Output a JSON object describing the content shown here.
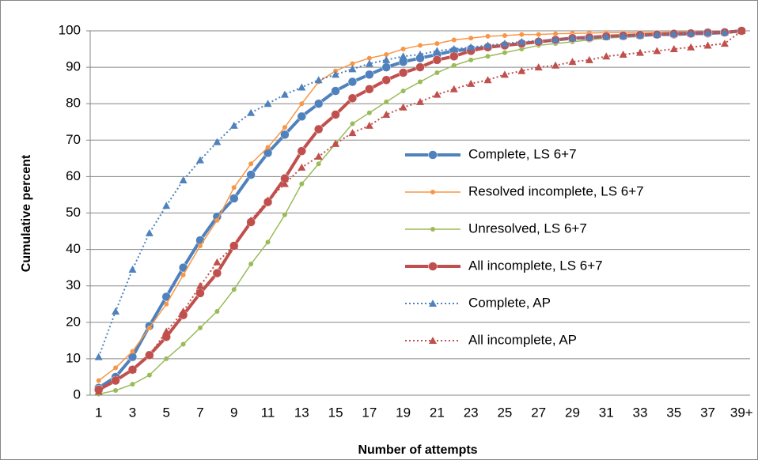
{
  "chart_data": {
    "type": "line",
    "x_label": "Number of attempts",
    "y_label": "Cumulative percent",
    "categories": [
      "1",
      null,
      "3",
      null,
      "5",
      null,
      "7",
      null,
      "9",
      null,
      "11",
      null,
      "13",
      null,
      "15",
      null,
      "17",
      null,
      "19",
      null,
      "21",
      null,
      "23",
      null,
      "25",
      null,
      "27",
      null,
      "29",
      null,
      "31",
      null,
      "33",
      null,
      "35",
      null,
      "37",
      null,
      "39+"
    ],
    "ylim": [
      0,
      100
    ],
    "yticks": [
      0,
      10,
      20,
      30,
      40,
      50,
      60,
      70,
      80,
      90,
      100
    ],
    "grid": true,
    "legend": "right",
    "series": [
      {
        "name": "Complete, LS 6+7",
        "color": "#4f81bd",
        "line_width": 4,
        "marker": "circle",
        "dash": "solid",
        "values": [
          2,
          5,
          10.5,
          19,
          27,
          35,
          42.5,
          49,
          54,
          60.5,
          66.5,
          71.5,
          76.5,
          80,
          83.5,
          86,
          88,
          90,
          91.5,
          92.5,
          93.5,
          94.5,
          95,
          95.5,
          96,
          96.5,
          97,
          97.5,
          98,
          98,
          98.5,
          98.5,
          98.7,
          99,
          99,
          99.2,
          99.3,
          99.5,
          100
        ]
      },
      {
        "name": "Resolved incomplete, LS 6+7",
        "color": "#f79646",
        "line_width": 1.5,
        "marker": "circle",
        "dash": "solid",
        "values": [
          4,
          7.5,
          12,
          18.5,
          25,
          33,
          41,
          48,
          57,
          63.5,
          68,
          73.5,
          80,
          86,
          89,
          91,
          92.5,
          93.5,
          95,
          96,
          96.5,
          97.5,
          98,
          98.5,
          98.7,
          99,
          99,
          99.2,
          99.3,
          99.4,
          99.5,
          99.5,
          99.6,
          99.6,
          99.7,
          99.7,
          99.8,
          99.8,
          100
        ]
      },
      {
        "name": "Unresolved, LS 6+7",
        "color": "#9bbb59",
        "line_width": 1.5,
        "marker": "circle",
        "dash": "solid",
        "values": [
          0.3,
          1.3,
          3,
          5.5,
          10,
          14,
          18.5,
          23,
          29,
          36,
          42,
          49.5,
          58,
          63.5,
          69,
          74.5,
          77.5,
          80.5,
          83.5,
          86,
          88.5,
          90.5,
          92,
          93,
          94,
          95,
          96,
          96.5,
          97,
          97.5,
          98,
          98.3,
          98.5,
          98.8,
          99,
          99.2,
          99.4,
          99.6,
          100
        ]
      },
      {
        "name": "All incomplete, LS 6+7",
        "color": "#c0504d",
        "line_width": 4,
        "marker": "circle",
        "dash": "solid",
        "values": [
          1.5,
          4,
          7,
          11,
          16,
          22,
          28,
          33.5,
          41,
          47.5,
          53,
          59.5,
          67,
          73,
          77,
          81.5,
          84,
          86.5,
          88.5,
          90,
          92,
          93,
          94.5,
          95.5,
          96,
          96.5,
          97,
          97.5,
          98,
          98.2,
          98.5,
          98.7,
          98.9,
          99,
          99.2,
          99.3,
          99.5,
          99.6,
          100
        ]
      },
      {
        "name": "Complete, AP",
        "color": "#4f81bd",
        "line_width": 2,
        "marker": "triangle",
        "dash": "dotted",
        "values": [
          10.5,
          23,
          34.5,
          44.5,
          52,
          59,
          64.5,
          69.5,
          74,
          77.5,
          80,
          82.5,
          84.5,
          86.5,
          88,
          89.5,
          91,
          92,
          93,
          93.5,
          94.5,
          95,
          95.5,
          96,
          96.5,
          97,
          97.3,
          97.6,
          98,
          98.2,
          98.4,
          98.6,
          98.8,
          99,
          99.2,
          99.3,
          99.5,
          99.6,
          100
        ]
      },
      {
        "name": "All incomplete, AP",
        "color": "#c0504d",
        "line_width": 2,
        "marker": "triangle",
        "dash": "dotted",
        "values": [
          1,
          4.5,
          7,
          11,
          17.5,
          23,
          30,
          36.5,
          41,
          48,
          53.5,
          58,
          62.5,
          65.5,
          69,
          72,
          74,
          77,
          79,
          80.5,
          82.5,
          84,
          85.5,
          86.5,
          88,
          89,
          90,
          90.5,
          91.5,
          92,
          93,
          93.5,
          94,
          94.5,
          95,
          95.5,
          96,
          96.5,
          100
        ]
      }
    ]
  }
}
